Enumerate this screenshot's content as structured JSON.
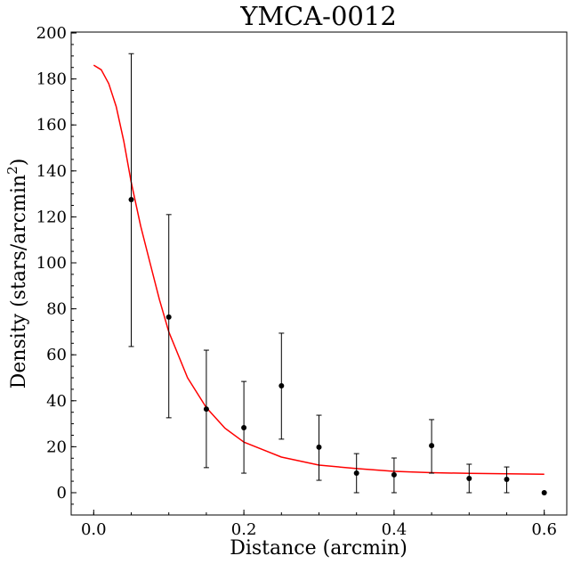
{
  "chart_data": {
    "type": "scatter",
    "title": "YMCA-0012",
    "xlabel": "Distance (arcmin)",
    "ylabel_main": "Density (stars/arcmin",
    "ylabel_sup": "2",
    "ylabel_close": ")",
    "xlim": [
      -0.03,
      0.63
    ],
    "ylim": [
      -9.7,
      200.4
    ],
    "xticks": [
      0.0,
      0.2,
      0.4,
      0.6
    ],
    "xtick_labels": [
      "0.0",
      "0.2",
      "0.4",
      "0.6"
    ],
    "xminor_step": 0.05,
    "yticks": [
      0,
      20,
      40,
      60,
      80,
      100,
      120,
      140,
      160,
      180,
      200
    ],
    "ytick_labels": [
      "0",
      "20",
      "40",
      "60",
      "80",
      "100",
      "120",
      "140",
      "160",
      "180",
      "200"
    ],
    "yminor_step": 5,
    "grid": false,
    "points": {
      "x": [
        0.05,
        0.1,
        0.15,
        0.2,
        0.25,
        0.3,
        0.35,
        0.4,
        0.45,
        0.5,
        0.55,
        0.6
      ],
      "y": [
        127.5,
        76.4,
        36.4,
        28.3,
        46.5,
        19.8,
        8.5,
        7.8,
        20.5,
        6.2,
        5.8,
        0.0
      ],
      "yerr_low": [
        63.6,
        32.6,
        10.9,
        8.5,
        23.3,
        5.4,
        0.0,
        0.0,
        8.5,
        0.0,
        0.0,
        null
      ],
      "yerr_high": [
        191.0,
        121.0,
        62.0,
        48.4,
        69.4,
        33.7,
        17.0,
        15.1,
        31.8,
        12.4,
        11.2,
        null
      ],
      "color": "#000000"
    },
    "fit": {
      "x": [
        0,
        0.01,
        0.02,
        0.03,
        0.04,
        0.05,
        0.0625,
        0.075,
        0.0875,
        0.1,
        0.125,
        0.15,
        0.175,
        0.2,
        0.25,
        0.3,
        0.35,
        0.4,
        0.45,
        0.5,
        0.55,
        0.6
      ],
      "y": [
        186,
        184,
        178,
        168,
        153,
        135,
        116,
        100,
        84,
        70,
        50,
        37,
        28,
        22,
        15.5,
        12,
        10.5,
        9.3,
        8.7,
        8.4,
        8.2,
        8.0
      ],
      "color": "#ff0000"
    }
  }
}
